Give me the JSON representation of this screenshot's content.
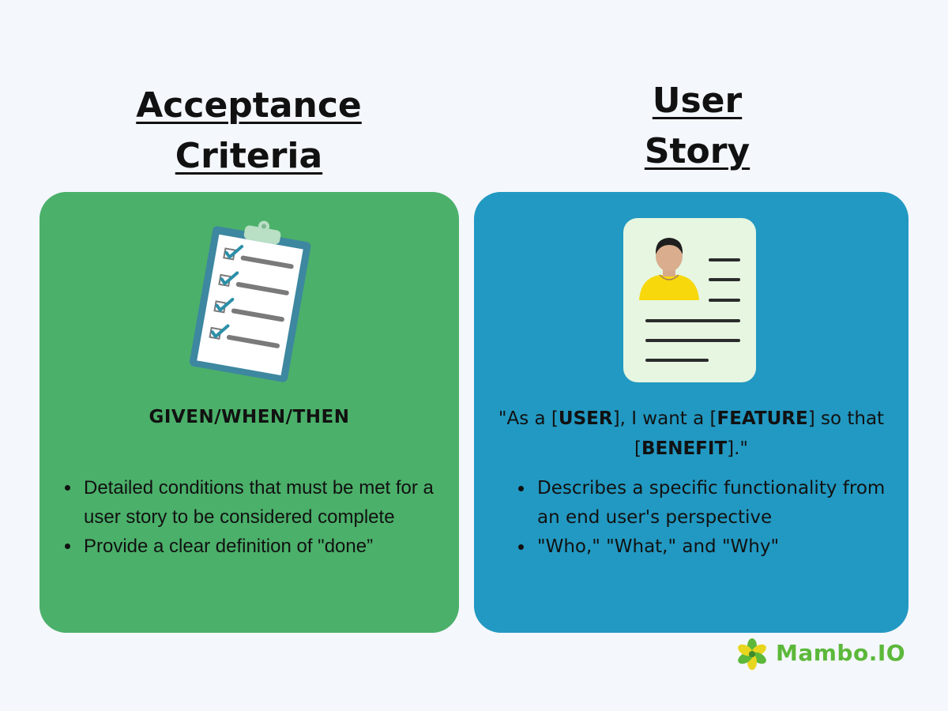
{
  "left": {
    "heading_line1": "Acceptance",
    "heading_line2": "Criteria",
    "title": "GIVEN/WHEN/THEN",
    "bullets": [
      "Detailed conditions that must be met for a user story to be considered complete",
      "Provide a clear definition of \"done”"
    ]
  },
  "right": {
    "heading_line1": "User",
    "heading_line2": "Story",
    "quote": {
      "p1": "\"As a [",
      "user": "USER",
      "p2": "], I want a [",
      "feature": "FEATURE",
      "p3": "] so that [",
      "benefit": "BENEFIT",
      "p4": "].\""
    },
    "bullets": [
      "Describes a specific functionality from an end user's perspective",
      "\"Who,\" \"What,\" and \"Why\""
    ]
  },
  "logo": {
    "text": "Mambo.IO"
  },
  "colors": {
    "background": "#f4f7fc",
    "left_card": "#4bb06a",
    "right_card": "#2299c2",
    "logo_green": "#5cb83a",
    "logo_yellow": "#e8d51e"
  }
}
